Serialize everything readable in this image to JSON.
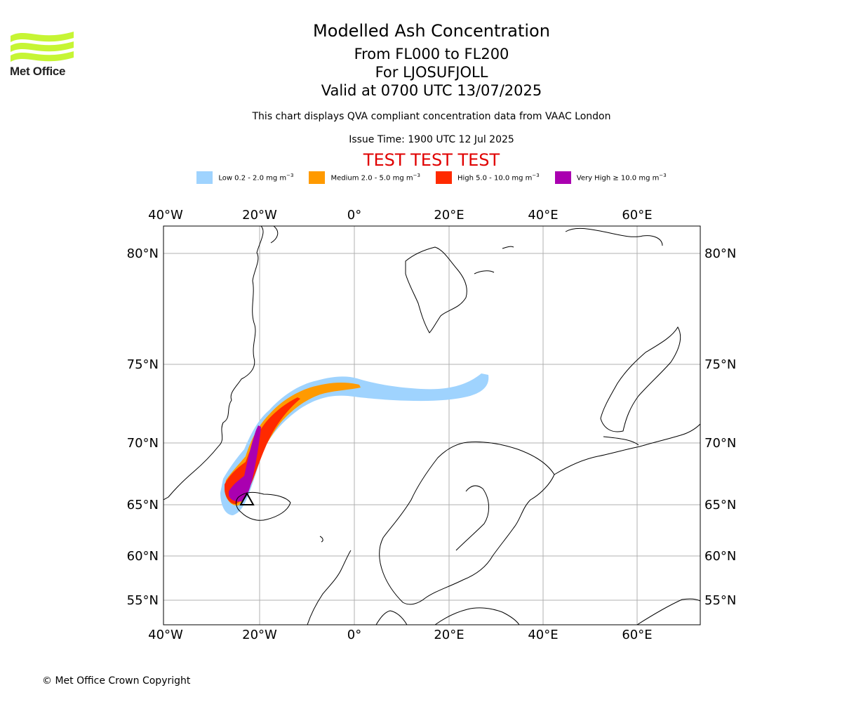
{
  "header": {
    "title": "Modelled Ash Concentration",
    "levels": "From FL000 to FL200",
    "volcano": "For LJOSUFJOLL",
    "valid": "Valid at 0700 UTC 13/07/2025",
    "note": "This chart displays QVA compliant concentration data from VAAC London",
    "issue": "Issue Time: 1900 UTC 12 Jul 2025",
    "test_banner": "TEST TEST TEST"
  },
  "logo": {
    "text": "Met Office",
    "color": "#c6f534"
  },
  "legend": [
    {
      "label": "Low 0.2 - 2.0 mg m",
      "sup": "−3",
      "color": "#9fd3fe"
    },
    {
      "label": "Medium 2.0 - 5.0 mg m",
      "sup": "−3",
      "color": "#ff9a00"
    },
    {
      "label": "High 5.0 - 10.0 mg m",
      "sup": "−3",
      "color": "#ff2a00"
    },
    {
      "label": "Very High  ≥  10.0 mg m",
      "sup": "−3",
      "color": "#aa00b0"
    }
  ],
  "axes": {
    "lon_labels": [
      "40°W",
      "20°W",
      "0°",
      "20°E",
      "40°E",
      "60°E"
    ],
    "lat_labels": [
      "80°N",
      "75°N",
      "70°N",
      "65°N",
      "60°N",
      "55°N"
    ]
  },
  "footer": {
    "copyright": "© Met Office Crown Copyright"
  }
}
